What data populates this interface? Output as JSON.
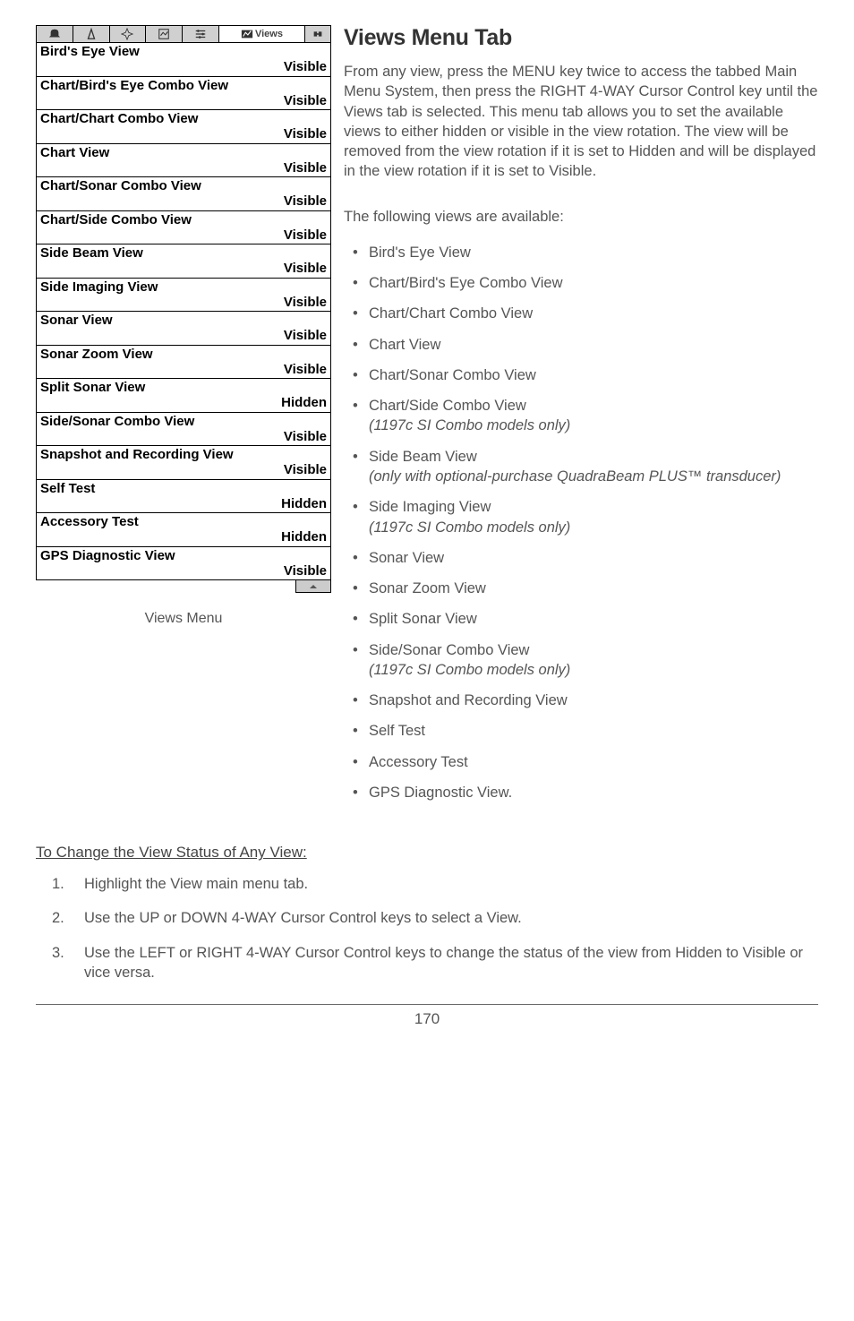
{
  "tabbar": {
    "active_label": "Views"
  },
  "menu": {
    "items": [
      {
        "label": "Bird's Eye View",
        "value": "Visible"
      },
      {
        "label": "Chart/Bird's Eye Combo View",
        "value": "Visible"
      },
      {
        "label": "Chart/Chart Combo View",
        "value": "Visible"
      },
      {
        "label": "Chart View",
        "value": "Visible"
      },
      {
        "label": "Chart/Sonar Combo View",
        "value": "Visible"
      },
      {
        "label": "Chart/Side Combo View",
        "value": "Visible"
      },
      {
        "label": "Side Beam View",
        "value": "Visible"
      },
      {
        "label": "Side Imaging View",
        "value": "Visible"
      },
      {
        "label": "Sonar View",
        "value": "Visible"
      },
      {
        "label": "Sonar Zoom View",
        "value": "Visible"
      },
      {
        "label": "Split Sonar View",
        "value": "Hidden"
      },
      {
        "label": "Side/Sonar Combo View",
        "value": "Visible"
      },
      {
        "label": "Snapshot and Recording View",
        "value": "Visible"
      },
      {
        "label": "Self Test",
        "value": "Hidden"
      },
      {
        "label": "Accessory Test",
        "value": "Hidden"
      },
      {
        "label": "GPS Diagnostic View",
        "value": "Visible"
      }
    ],
    "caption": "Views Menu"
  },
  "heading": "Views Menu Tab",
  "paragraph": "From any view, press the MENU key twice to access the tabbed Main Menu System, then press the RIGHT 4-WAY Cursor Control key until the Views tab is selected. This menu tab allows you to set the available views to either hidden or visible in the view rotation. The view will be removed from the view rotation if it is set to Hidden and will be displayed in the view rotation if it is set to Visible.",
  "subpara": "The following views are available:",
  "bullets": [
    {
      "text": "Bird's Eye View"
    },
    {
      "text": "Chart/Bird's Eye Combo View"
    },
    {
      "text": "Chart/Chart Combo View"
    },
    {
      "text": "Chart View"
    },
    {
      "text": "Chart/Sonar Combo View"
    },
    {
      "text": "Chart/Side Combo View",
      "note": "(1197c SI Combo models only)"
    },
    {
      "text": "Side Beam View",
      "note": "(only with optional-purchase QuadraBeam PLUS™ transducer)"
    },
    {
      "text": "Side Imaging View",
      "note": "(1197c SI Combo models only)"
    },
    {
      "text": "Sonar View"
    },
    {
      "text": "Sonar Zoom View"
    },
    {
      "text": "Split Sonar View"
    },
    {
      "text": "Side/Sonar Combo View",
      "note": "(1197c SI Combo models only)"
    },
    {
      "text": "Snapshot and Recording View"
    },
    {
      "text": "Self Test"
    },
    {
      "text": "Accessory Test"
    },
    {
      "text": "GPS Diagnostic View."
    }
  ],
  "change_section": {
    "title": "To Change the View Status of Any View:",
    "steps": [
      "Highlight the View main menu tab.",
      "Use the UP or DOWN 4-WAY Cursor Control keys to select a View.",
      "Use the LEFT or RIGHT 4-WAY Cursor Control keys to change the status of the view from Hidden to Visible or vice versa."
    ]
  },
  "page_number": "170"
}
